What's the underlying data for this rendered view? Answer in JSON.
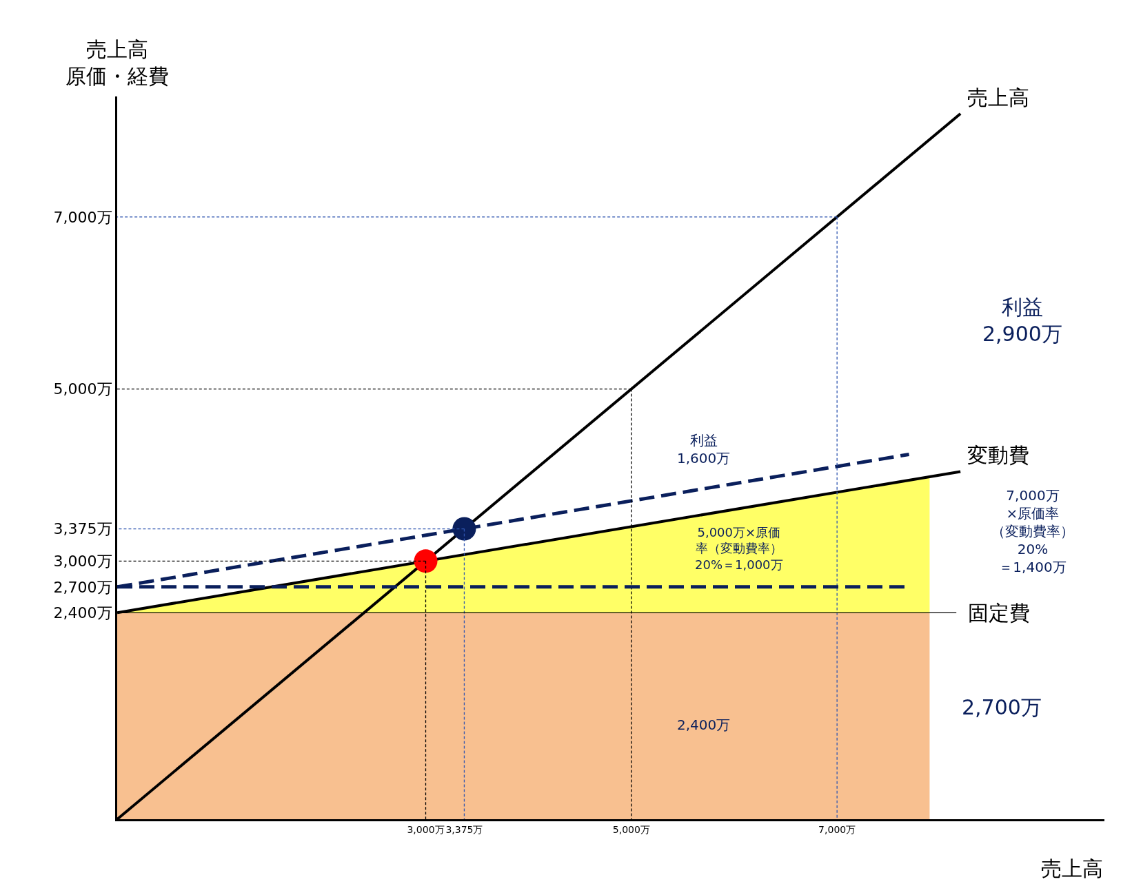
{
  "chart_data": {
    "type": "line",
    "ylabel": "売上高原価・経費",
    "xlabel": "売上高",
    "xlim": [
      0,
      9600
    ],
    "ylim": [
      0,
      8400
    ],
    "xticks": [
      {
        "value": 3000,
        "label": "3,000万"
      },
      {
        "value": 3375,
        "label": "3,375万"
      },
      {
        "value": 5000,
        "label": "5,000万"
      },
      {
        "value": 7000,
        "label": "7,000万"
      }
    ],
    "yticks": [
      {
        "value": 2400,
        "label": "2,400万"
      },
      {
        "value": 2700,
        "label": "2,700万"
      },
      {
        "value": 3000,
        "label": "3,000万"
      },
      {
        "value": 3375,
        "label": "3,375万"
      },
      {
        "value": 5000,
        "label": "5,000万"
      },
      {
        "value": 7000,
        "label": "7,000万"
      }
    ],
    "series": [
      {
        "type": "area",
        "color": "#f8c090",
        "x": [
          0,
          7900
        ],
        "values": [
          2400,
          2400
        ]
      },
      {
        "type": "area",
        "color": "#ffff66",
        "x": [
          0,
          7900
        ],
        "values": [
          2400,
          3980
        ]
      },
      {
        "color": "#000000",
        "line_style": "dotted",
        "x": [
          3000,
          3000
        ],
        "values": [
          3000,
          0
        ]
      },
      {
        "color": "#000000",
        "line_style": "dotted",
        "x": [
          3000,
          0
        ],
        "values": [
          3000,
          3000
        ]
      },
      {
        "color": "#000000",
        "line_style": "dotted",
        "x": [
          5000,
          5000
        ],
        "values": [
          5000,
          0
        ]
      },
      {
        "color": "#000000",
        "line_style": "dotted",
        "x": [
          5000,
          0
        ],
        "values": [
          5000,
          5000
        ]
      },
      {
        "color": "#2f55b0",
        "line_style": "dotted",
        "x": [
          7000,
          7000
        ],
        "values": [
          7000,
          0
        ]
      },
      {
        "color": "#2f55b0",
        "line_style": "dotted",
        "x": [
          7000,
          0
        ],
        "values": [
          7000,
          7000
        ]
      },
      {
        "color": "#2f55b0",
        "line_style": "dotted",
        "x": [
          3375,
          3375
        ],
        "values": [
          3375,
          0
        ]
      },
      {
        "color": "#2f55b0",
        "line_style": "dotted",
        "x": [
          3375,
          0
        ],
        "values": [
          3375,
          3375
        ]
      },
      {
        "name": "売上高",
        "color": "#000000",
        "line_style": "solid",
        "x": [
          0,
          8200
        ],
        "values": [
          0,
          8200
        ]
      },
      {
        "name": "変動費",
        "color": "#000000",
        "line_style": "solid",
        "x": [
          0,
          8200
        ],
        "values": [
          2400,
          4040
        ]
      },
      {
        "color": "#0a1f5c",
        "line_style": "dashed",
        "x": [
          0,
          7700
        ],
        "values": [
          2700,
          4240
        ]
      },
      {
        "type": "scatter",
        "color": "#ff0000",
        "marker": "circle",
        "x": [
          3000
        ],
        "values": [
          3000
        ]
      },
      {
        "type": "scatter",
        "color": "#0a1f5c",
        "marker": "circle",
        "x": [
          3375
        ],
        "values": [
          3375
        ]
      }
    ],
    "ref_lines": [
      {
        "axis": "y",
        "value": 2400,
        "label": "固定費",
        "color": "#000000",
        "line_style": "solid"
      },
      {
        "axis": "y",
        "value": 2700,
        "color": "#0a1f5c",
        "line_style": "dashed"
      }
    ],
    "annotations": [
      "利益2,900万",
      "利益1,600万",
      "5,000万×原価率（変動費率）20%＝1,000万",
      "7,000万×原価率（変動費率）20%＝1,400万",
      "2,400万",
      "2,700万"
    ]
  }
}
